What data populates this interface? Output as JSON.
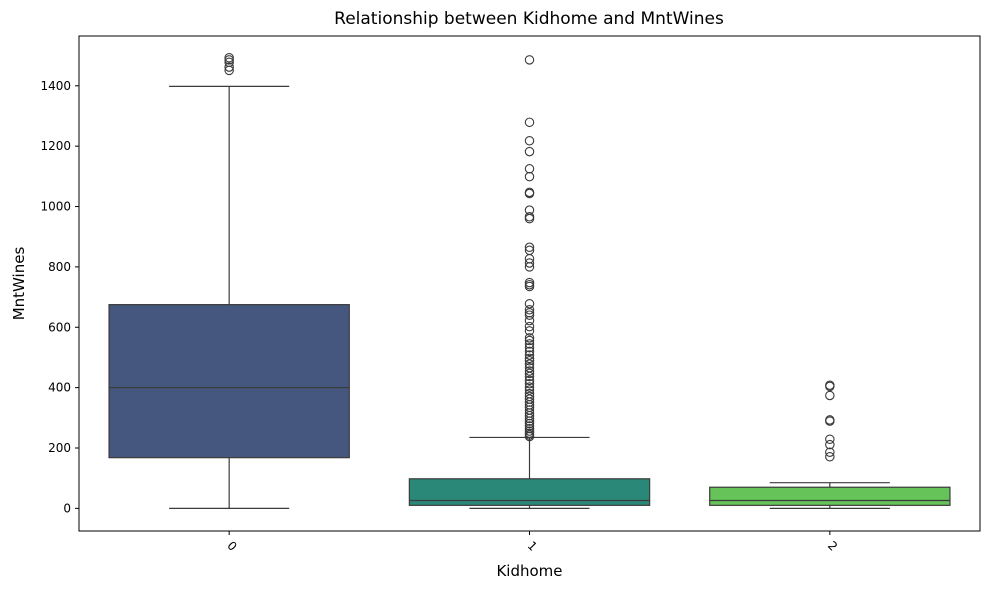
{
  "chart_data": {
    "type": "box",
    "title": "Relationship between Kidhome and MntWines",
    "xlabel": "Kidhome",
    "ylabel": "MntWines",
    "ylim": [
      -75,
      1565
    ],
    "yticks": [
      0,
      200,
      400,
      600,
      800,
      1000,
      1200,
      1400
    ],
    "grid": false,
    "colors": {
      "box_edge": "#3b3b3b",
      "axis": "#000000"
    },
    "categories": [
      "0",
      "1",
      "2"
    ],
    "boxes": [
      {
        "category": "0",
        "color": "#45567f",
        "q1": 168,
        "median": 400,
        "q3": 675,
        "whisker_low": 0,
        "whisker_high": 1398,
        "outliers": [
          1493,
          1486,
          1478,
          1462,
          1451
        ]
      },
      {
        "category": "1",
        "color": "#2a8878",
        "q1": 10,
        "median": 26,
        "q3": 98,
        "whisker_low": 0,
        "whisker_high": 235,
        "outliers": [
          1486,
          1279,
          1218,
          1182,
          1125,
          1099,
          1047,
          1043,
          988,
          966,
          960,
          865,
          855,
          827,
          813,
          800,
          748,
          741,
          735,
          678,
          658,
          648,
          640,
          622,
          602,
          588,
          565,
          556,
          545,
          532,
          520,
          508,
          497,
          489,
          478,
          466,
          455,
          447,
          437,
          424,
          413,
          402,
          392,
          380,
          371,
          362,
          352,
          343,
          335,
          326,
          316,
          307,
          298,
          289,
          281,
          273,
          264,
          256,
          249,
          243,
          238
        ]
      },
      {
        "category": "2",
        "color": "#66c35a",
        "q1": 10,
        "median": 26,
        "q3": 70,
        "whisker_low": 0,
        "whisker_high": 85,
        "outliers": [
          408,
          404,
          374,
          293,
          289,
          229,
          211,
          186,
          171
        ]
      }
    ]
  }
}
